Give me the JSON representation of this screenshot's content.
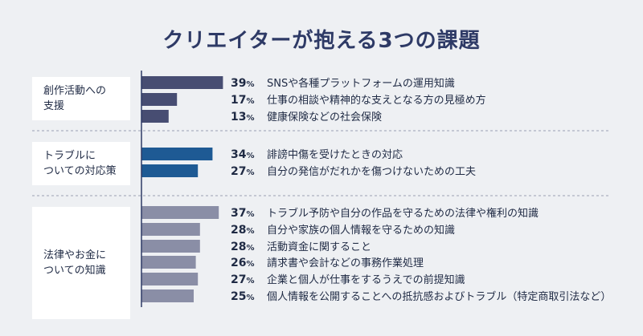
{
  "title": "クリエイターが抱える3つの課題",
  "chart_data": {
    "type": "bar",
    "orientation": "horizontal",
    "unit": "%",
    "xlim": [
      0,
      100
    ],
    "grid": false,
    "groups": [
      {
        "name": "創作活動への\n支援",
        "color": "#474d72",
        "items": [
          {
            "label": "SNSや各種プラットフォームの運用知識",
            "value": 39
          },
          {
            "label": "仕事の相談や精神的な支えとなる方の見極め方",
            "value": 17
          },
          {
            "label": "健康保険などの社会保険",
            "value": 13
          }
        ]
      },
      {
        "name": "トラブルに\nついての対応策",
        "color": "#1e5a94",
        "items": [
          {
            "label": "誹謗中傷を受けたときの対応",
            "value": 34
          },
          {
            "label": "自分の発信がだれかを傷つけないための工夫",
            "value": 27
          }
        ]
      },
      {
        "name": "法律やお金に\nついての知識",
        "color": "#8a8ea6",
        "items": [
          {
            "label": "トラブル予防や自分の作品を守るための法律や権利の知識",
            "value": 37
          },
          {
            "label": "自分や家族の個人情報を守るための知識",
            "value": 28
          },
          {
            "label": "活動資金に関すること",
            "value": 28
          },
          {
            "label": "請求書や会計などの事務作業処理",
            "value": 26
          },
          {
            "label": "企業と個人が仕事をするうえでの前提知識",
            "value": 27
          },
          {
            "label": "個人情報を公開することへの抵抗感およびトラブル（特定商取引法など）",
            "value": 25
          }
        ]
      }
    ]
  }
}
